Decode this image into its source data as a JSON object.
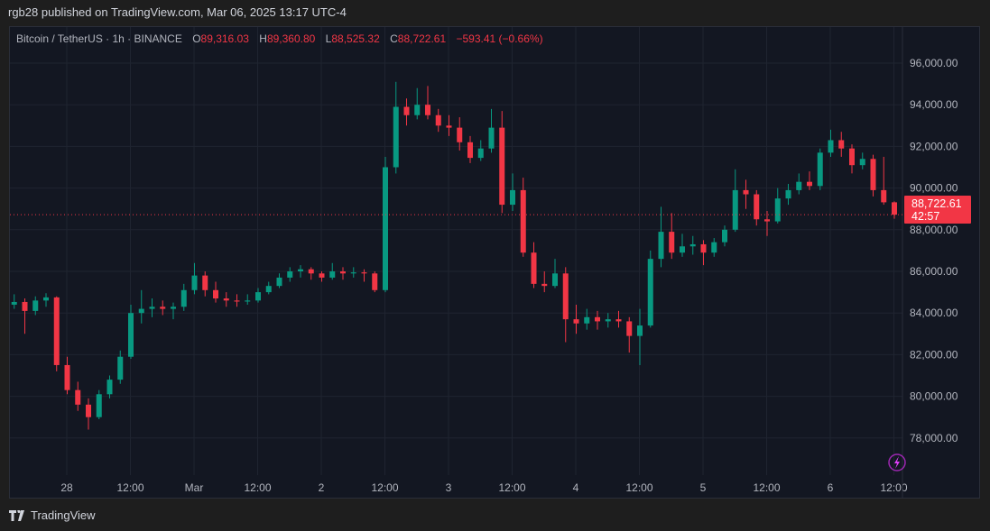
{
  "header": {
    "published": "rgb28 published on TradingView.com, Mar 06, 2025 13:17 UTC-4"
  },
  "legend": {
    "symbol": "Bitcoin / TetherUS · 1h · BINANCE",
    "o_label": "O",
    "o": "89,316.03",
    "h_label": "H",
    "h": "89,360.80",
    "l_label": "L",
    "l": "88,525.32",
    "c_label": "C",
    "c": "88,722.61",
    "change": "−593.41 (−0.66%)"
  },
  "last_price": {
    "price": "88,722.61",
    "countdown": "42:57"
  },
  "footer": {
    "brand": "TradingView"
  },
  "colors": {
    "up": "#089981",
    "down": "#f23645",
    "background": "#131722",
    "grid": "#1f2430"
  },
  "icons": {
    "lightning": "lightning-icon"
  },
  "chart_data": {
    "type": "candlestick",
    "title": "",
    "ylim": [
      76800,
      97300
    ],
    "y_ticks": [
      "78,000.00",
      "80,000.00",
      "82,000.00",
      "84,000.00",
      "86,000.00",
      "88,000.00",
      "90,000.00",
      "92,000.00",
      "94,000.00",
      "96,000.00"
    ],
    "y_tick_values": [
      78000,
      80000,
      82000,
      84000,
      86000,
      88000,
      90000,
      92000,
      94000,
      96000
    ],
    "x_ticks": [
      "28",
      "12:00",
      "Mar",
      "12:00",
      "2",
      "12:00",
      "3",
      "12:00",
      "4",
      "12:00",
      "5",
      "12:00",
      "6",
      "12:00"
    ],
    "x_tick_hours": [
      0,
      12,
      24,
      36,
      48,
      60,
      72,
      84,
      96,
      108,
      120,
      132,
      144,
      156
    ],
    "x_tick_origin": "2025-02-28 00:00",
    "grid": true,
    "candle_start": "2025-02-27 14:00",
    "candle_interval_hours": 2,
    "candles_ohlc": [
      [
        84400,
        84900,
        84200,
        84530
      ],
      [
        84530,
        84700,
        83000,
        84100
      ],
      [
        84100,
        84800,
        83900,
        84600
      ],
      [
        84600,
        84950,
        84300,
        84750
      ],
      [
        84750,
        84800,
        81200,
        81500
      ],
      [
        81500,
        81900,
        80100,
        80300
      ],
      [
        80300,
        80700,
        79300,
        79600
      ],
      [
        79600,
        79900,
        78400,
        79000
      ],
      [
        79000,
        80300,
        78900,
        80100
      ],
      [
        80100,
        81000,
        79900,
        80800
      ],
      [
        80800,
        82200,
        80600,
        81900
      ],
      [
        81900,
        84400,
        81800,
        84000
      ],
      [
        84000,
        85100,
        83500,
        84200
      ],
      [
        84200,
        84700,
        83800,
        84300
      ],
      [
        84300,
        84600,
        83900,
        84200
      ],
      [
        84200,
        84500,
        83700,
        84300
      ],
      [
        84300,
        85400,
        84100,
        85100
      ],
      [
        85100,
        86400,
        84900,
        85800
      ],
      [
        85800,
        86000,
        84800,
        85100
      ],
      [
        85100,
        85500,
        84500,
        84700
      ],
      [
        84700,
        85000,
        84300,
        84600
      ],
      [
        84600,
        84900,
        84300,
        84550
      ],
      [
        84550,
        84900,
        84400,
        84600
      ],
      [
        84600,
        85200,
        84500,
        85000
      ],
      [
        85000,
        85500,
        84900,
        85300
      ],
      [
        85300,
        85900,
        85200,
        85700
      ],
      [
        85700,
        86200,
        85500,
        86000
      ],
      [
        86000,
        86300,
        85700,
        86100
      ],
      [
        86100,
        86200,
        85600,
        85900
      ],
      [
        85900,
        86000,
        85500,
        85700
      ],
      [
        85700,
        86400,
        85600,
        86000
      ],
      [
        86000,
        86200,
        85600,
        85900
      ],
      [
        85900,
        86200,
        85700,
        85950
      ],
      [
        85950,
        86100,
        85500,
        85900
      ],
      [
        85900,
        86000,
        85000,
        85100
      ],
      [
        85100,
        91500,
        85000,
        91000
      ],
      [
        91000,
        95100,
        90700,
        93900
      ],
      [
        93900,
        94300,
        93000,
        93500
      ],
      [
        93500,
        94800,
        93300,
        94000
      ],
      [
        94000,
        94900,
        93300,
        93500
      ],
      [
        93500,
        93800,
        92700,
        93000
      ],
      [
        93000,
        93500,
        92500,
        92900
      ],
      [
        92900,
        93400,
        91800,
        92200
      ],
      [
        92200,
        92500,
        91200,
        91450
      ],
      [
        91450,
        92300,
        91300,
        91900
      ],
      [
        91900,
        93800,
        91700,
        92900
      ],
      [
        92900,
        93700,
        88800,
        89200
      ],
      [
        89200,
        90700,
        88900,
        89900
      ],
      [
        89900,
        90500,
        86700,
        86900
      ],
      [
        86900,
        87400,
        85200,
        85400
      ],
      [
        85400,
        86000,
        85000,
        85300
      ],
      [
        85300,
        86600,
        85200,
        85900
      ],
      [
        85900,
        86200,
        82600,
        83700
      ],
      [
        83700,
        84400,
        83000,
        83500
      ],
      [
        83500,
        84200,
        83200,
        83800
      ],
      [
        83800,
        84100,
        83200,
        83600
      ],
      [
        83600,
        84000,
        83300,
        83700
      ],
      [
        83700,
        84100,
        83300,
        83600
      ],
      [
        83600,
        83800,
        82100,
        82900
      ],
      [
        82900,
        84200,
        81500,
        83400
      ],
      [
        83400,
        87000,
        83300,
        86600
      ],
      [
        86600,
        89100,
        86200,
        87900
      ],
      [
        87900,
        88800,
        86600,
        86900
      ],
      [
        86900,
        87800,
        86700,
        87200
      ],
      [
        87200,
        87700,
        86800,
        87300
      ],
      [
        87300,
        87500,
        86300,
        86900
      ],
      [
        86900,
        87600,
        86700,
        87400
      ],
      [
        87400,
        88200,
        87200,
        88000
      ],
      [
        88000,
        90900,
        87900,
        89900
      ],
      [
        89900,
        90400,
        89000,
        89700
      ],
      [
        89700,
        89900,
        88200,
        88500
      ],
      [
        88500,
        88900,
        87700,
        88400
      ],
      [
        88400,
        90000,
        88300,
        89500
      ],
      [
        89500,
        90200,
        89200,
        89900
      ],
      [
        89900,
        90700,
        89700,
        90300
      ],
      [
        90300,
        90800,
        89900,
        90100
      ],
      [
        90100,
        91900,
        89900,
        91700
      ],
      [
        91700,
        92800,
        91500,
        92300
      ],
      [
        92300,
        92700,
        91500,
        91900
      ],
      [
        91900,
        92100,
        90700,
        91100
      ],
      [
        91100,
        91700,
        90900,
        91400
      ],
      [
        91400,
        91600,
        89600,
        89900
      ],
      [
        89900,
        91500,
        89200,
        89316.03
      ],
      [
        89316.03,
        89360.8,
        88525.32,
        88722.61
      ]
    ],
    "last_price": 88722.61
  }
}
